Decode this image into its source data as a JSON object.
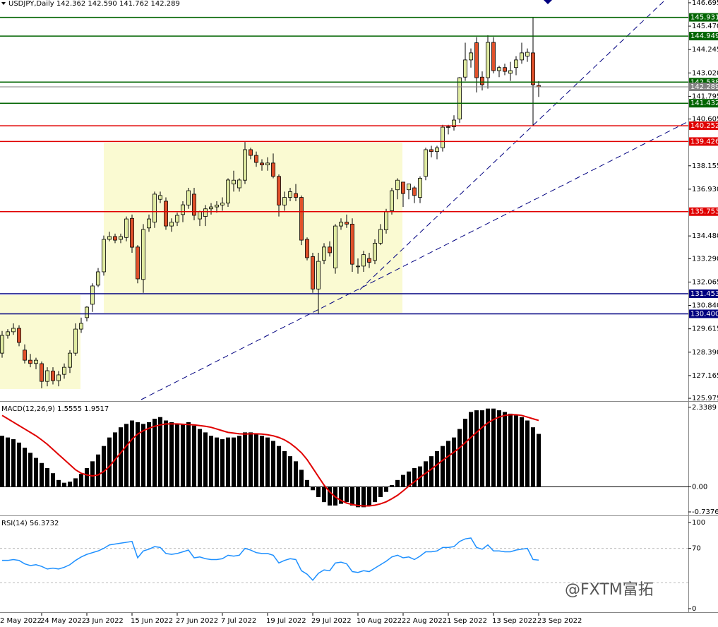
{
  "chart_data": [
    {
      "type": "candlestick",
      "title": "USDJPY,Daily  142.362 142.590 141.762 142.289",
      "up_color": "#dfeaa0",
      "down_color": "#e0502a",
      "open": [
        128.34,
        129.27,
        129.46,
        129.64,
        128.5,
        127.97,
        127.8,
        127.79,
        126.86,
        127.4,
        126.9,
        127.23,
        127.6,
        128.34,
        129.6,
        130.2,
        130.9,
        131.9,
        132.6,
        134.3,
        134.45,
        134.3,
        134.4,
        135.4,
        133.9,
        132.2,
        134.9,
        135.2,
        136.4,
        136.3,
        135.0,
        135.2,
        135.6,
        136.1,
        136.67,
        135.37,
        135.5,
        135.9,
        136.0,
        136.1,
        136.2,
        137.2,
        137.0,
        137.4,
        139.0,
        138.7,
        138.3,
        138.2,
        138.3,
        137.6,
        136.1,
        136.5,
        136.7,
        136.5,
        134.3,
        133.4,
        131.7,
        133.2,
        133.9,
        132.8,
        135.0,
        135.2,
        135.1,
        132.9,
        132.9,
        133.3,
        133.2,
        134.1,
        134.8,
        135.8,
        136.9,
        137.3,
        136.9,
        137.0,
        136.5,
        137.6,
        139.0,
        138.9,
        139.1,
        140.2,
        140.2,
        140.6,
        142.8,
        143.7,
        144.6,
        142.8,
        142.77,
        144.62,
        143.14,
        143.3,
        143.0,
        143.3,
        143.7,
        143.9,
        144.07,
        142.362
      ],
      "high": [
        129.5,
        129.6,
        129.9,
        129.8,
        128.8,
        128.3,
        128.1,
        127.9,
        127.6,
        127.6,
        127.4,
        127.8,
        128.5,
        129.9,
        130.2,
        130.8,
        132.0,
        132.8,
        134.5,
        134.7,
        134.6,
        134.6,
        135.5,
        135.6,
        134.0,
        135.1,
        135.6,
        136.8,
        136.8,
        136.5,
        135.4,
        135.7,
        136.3,
        137.0,
        137.0,
        135.8,
        136.1,
        136.2,
        136.3,
        136.5,
        137.5,
        137.9,
        137.5,
        139.4,
        139.1,
        138.9,
        138.5,
        138.6,
        138.8,
        137.7,
        136.8,
        137.0,
        137.2,
        136.6,
        134.4,
        133.6,
        133.6,
        134.1,
        134.2,
        135.1,
        135.4,
        135.6,
        135.4,
        133.3,
        133.7,
        133.6,
        134.3,
        135.1,
        135.9,
        137.0,
        137.5,
        137.3,
        137.2,
        137.1,
        137.6,
        139.1,
        139.2,
        139.2,
        140.3,
        140.3,
        140.8,
        142.8,
        144.6,
        144.3,
        144.9,
        143.1,
        144.99,
        144.9,
        143.4,
        143.5,
        143.6,
        143.9,
        144.6,
        144.3,
        145.931,
        142.59
      ],
      "low": [
        128.1,
        129.1,
        129.3,
        128.7,
        127.8,
        127.6,
        127.5,
        126.5,
        126.6,
        126.7,
        126.6,
        127.0,
        127.3,
        128.2,
        129.4,
        130.0,
        130.5,
        131.8,
        132.4,
        134.2,
        134.1,
        134.1,
        134.2,
        133.6,
        132.0,
        131.5,
        134.7,
        134.9,
        136.2,
        134.8,
        134.7,
        135.0,
        135.2,
        135.9,
        135.3,
        135.0,
        135.0,
        135.6,
        135.7,
        135.8,
        136.0,
        136.8,
        136.8,
        137.2,
        138.5,
        138.1,
        137.9,
        137.9,
        137.5,
        135.5,
        135.8,
        136.3,
        136.3,
        134.0,
        133.2,
        131.5,
        130.4,
        133.0,
        133.4,
        132.5,
        134.8,
        134.9,
        132.6,
        132.5,
        132.6,
        132.8,
        133.0,
        134.0,
        134.6,
        135.6,
        136.4,
        136.0,
        136.4,
        136.2,
        136.2,
        137.4,
        138.6,
        138.5,
        138.9,
        139.8,
        140.0,
        140.4,
        142.6,
        143.3,
        142.0,
        142.1,
        142.2,
        143.0,
        142.8,
        142.9,
        142.6,
        142.9,
        143.5,
        143.6,
        140.252,
        141.762
      ],
      "close": [
        129.27,
        129.46,
        129.64,
        128.9,
        127.97,
        127.8,
        127.97,
        126.86,
        127.42,
        126.9,
        127.2,
        127.6,
        128.34,
        129.6,
        129.9,
        130.75,
        131.86,
        132.6,
        134.3,
        134.45,
        134.26,
        134.45,
        135.37,
        133.89,
        132.23,
        134.82,
        135.37,
        136.67,
        136.6,
        135.0,
        135.2,
        135.56,
        136.11,
        136.85,
        135.56,
        135.74,
        135.9,
        136.0,
        136.1,
        136.2,
        137.41,
        137.4,
        137.41,
        139.0,
        138.7,
        138.33,
        138.2,
        138.3,
        137.6,
        136.1,
        136.5,
        136.8,
        136.5,
        134.26,
        133.34,
        131.7,
        133.15,
        133.9,
        133.6,
        135.0,
        135.2,
        135.1,
        133.0,
        132.9,
        133.5,
        133.1,
        134.1,
        134.82,
        135.74,
        136.85,
        137.4,
        136.7,
        137.2,
        136.6,
        137.5,
        139.0,
        138.9,
        139.1,
        140.18,
        140.2,
        140.55,
        142.77,
        143.7,
        144.07,
        142.77,
        142.4,
        144.62,
        143.14,
        143.3,
        143.1,
        143.14,
        143.7,
        144.07,
        144.1,
        142.4,
        142.289
      ],
      "ylim": [
        125.83,
        146.84
      ],
      "yticks": [
        146.695,
        {
          "value": 145.47,
          "label": "145.470"
        },
        144.245,
        {
          "value": 143.02,
          "label": "143.020"
        },
        141.795,
        140.605,
        138.155,
        {
          "value": 136.93,
          "label": "136.930"
        },
        {
          "value": 134.48,
          "label": "134.480"
        },
        {
          "value": 133.29,
          "label": "133.290"
        },
        132.065,
        {
          "value": 130.84,
          "label": "130.840"
        },
        129.615,
        {
          "value": 128.39,
          "label": "128.390"
        },
        127.165,
        125.975
      ],
      "levels": [
        {
          "value": 145.931,
          "color": "#006400"
        },
        {
          "value": 144.949,
          "color": "#006400"
        },
        {
          "value": 142.538,
          "color": "#006400"
        },
        {
          "value": 142.289,
          "color": "#808080"
        },
        {
          "value": 141.432,
          "color": "#006400"
        },
        {
          "value": 140.252,
          "color": "#e00000"
        },
        {
          "value": 139.426,
          "color": "#e00000"
        },
        {
          "value": 135.753,
          "color": "#e00000"
        },
        {
          "value": 131.453,
          "color": "#000080"
        },
        {
          "value": 130.4,
          "label": "130.400",
          "color": "#000080"
        }
      ],
      "xticks": [
        {
          "value": -9,
          "label": "2 May 2022"
        },
        {
          "value": 7,
          "label": "24 May 2022"
        },
        {
          "value": 15,
          "label": "3 Jun 2022"
        },
        {
          "value": 23,
          "label": "15 Jun 2022"
        },
        {
          "value": 31,
          "label": "27 Jun 2022"
        },
        {
          "value": 39,
          "label": "7 Jul 2022"
        },
        {
          "value": 47,
          "label": "19 Jul 2022"
        },
        {
          "value": 55,
          "label": "29 Jul 2022"
        },
        {
          "value": 63,
          "label": "10 Aug 2022"
        },
        {
          "value": 71,
          "label": "22 Aug 2022"
        },
        {
          "value": 79,
          "label": "1 Sep 2022"
        },
        {
          "value": 87,
          "label": "13 Sep 2022"
        },
        {
          "value": 95,
          "label": "23 Sep 2022"
        }
      ]
    },
    {
      "type": "macd",
      "title": "MACD(12,26,9) 1.5555 1.9517",
      "histogram_color": "#000000",
      "signal_color": "#e00000",
      "histogram": [
        1.5,
        1.45,
        1.4,
        1.3,
        1.15,
        1.0,
        0.85,
        0.7,
        0.55,
        0.4,
        0.2,
        0.12,
        0.15,
        0.25,
        0.38,
        0.55,
        0.75,
        0.95,
        1.2,
        1.45,
        1.6,
        1.75,
        1.85,
        1.95,
        1.9,
        1.85,
        1.9,
        2.0,
        2.05,
        1.95,
        1.9,
        1.85,
        1.85,
        1.9,
        1.8,
        1.7,
        1.6,
        1.5,
        1.45,
        1.4,
        1.45,
        1.45,
        1.5,
        1.6,
        1.6,
        1.55,
        1.5,
        1.45,
        1.35,
        1.2,
        1.05,
        0.9,
        0.75,
        0.5,
        0.2,
        -0.1,
        -0.3,
        -0.45,
        -0.55,
        -0.55,
        -0.5,
        -0.45,
        -0.55,
        -0.6,
        -0.6,
        -0.55,
        -0.45,
        -0.3,
        -0.15,
        0.05,
        0.2,
        0.35,
        0.45,
        0.55,
        0.6,
        0.75,
        0.9,
        1.05,
        1.2,
        1.35,
        1.45,
        1.7,
        2.0,
        2.2,
        2.25,
        2.25,
        2.3,
        2.3,
        2.25,
        2.2,
        2.15,
        2.1,
        2.05,
        1.95,
        1.75,
        1.5555
      ],
      "signal": [
        2.1,
        2.0,
        1.9,
        1.8,
        1.7,
        1.6,
        1.5,
        1.38,
        1.25,
        1.1,
        0.95,
        0.8,
        0.65,
        0.5,
        0.4,
        0.35,
        0.32,
        0.35,
        0.45,
        0.6,
        0.8,
        1.0,
        1.2,
        1.4,
        1.55,
        1.65,
        1.72,
        1.78,
        1.82,
        1.85,
        1.85,
        1.85,
        1.84,
        1.83,
        1.82,
        1.8,
        1.78,
        1.75,
        1.7,
        1.65,
        1.6,
        1.58,
        1.56,
        1.55,
        1.56,
        1.56,
        1.55,
        1.53,
        1.5,
        1.45,
        1.38,
        1.28,
        1.15,
        1.0,
        0.8,
        0.55,
        0.3,
        0.05,
        -0.15,
        -0.3,
        -0.4,
        -0.48,
        -0.52,
        -0.55,
        -0.56,
        -0.56,
        -0.54,
        -0.5,
        -0.44,
        -0.35,
        -0.25,
        -0.12,
        0.02,
        0.15,
        0.28,
        0.4,
        0.52,
        0.65,
        0.78,
        0.9,
        1.02,
        1.15,
        1.3,
        1.45,
        1.6,
        1.75,
        1.88,
        1.98,
        2.05,
        2.1,
        2.12,
        2.12,
        2.1,
        2.05,
        2.0,
        1.9517
      ],
      "ylim": [
        -0.8,
        2.48
      ],
      "yticks": [
        2.3389,
        {
          "value": 0,
          "label": "0.00"
        },
        -0.7376
      ]
    },
    {
      "type": "line",
      "title": "RSI(14) 56.3732",
      "color": "#1e90ff",
      "values": [
        56,
        56,
        57,
        56,
        52,
        50,
        51,
        49,
        46,
        47,
        46,
        48,
        51,
        56,
        60,
        63,
        65,
        67,
        70,
        74,
        75,
        76,
        77,
        78,
        59,
        67,
        69,
        72,
        71,
        64,
        63,
        64,
        66,
        68,
        59,
        60,
        58,
        57,
        57,
        58,
        62,
        61,
        62,
        70,
        68,
        65,
        64,
        64,
        62,
        53,
        56,
        58,
        57,
        44,
        40,
        33,
        41,
        45,
        44,
        53,
        54,
        52,
        43,
        42,
        44,
        43,
        47,
        51,
        55,
        60,
        62,
        59,
        60,
        57,
        61,
        66,
        66,
        67,
        71,
        71,
        72,
        78,
        81,
        82,
        71,
        69,
        74,
        67,
        67,
        66,
        66,
        68,
        69,
        70,
        57,
        56.3732
      ],
      "ylim": [
        0,
        100
      ],
      "yticks": [
        100,
        70,
        0
      ],
      "levels": [
        70,
        30
      ]
    }
  ],
  "watermark": "@FXTM富拓"
}
